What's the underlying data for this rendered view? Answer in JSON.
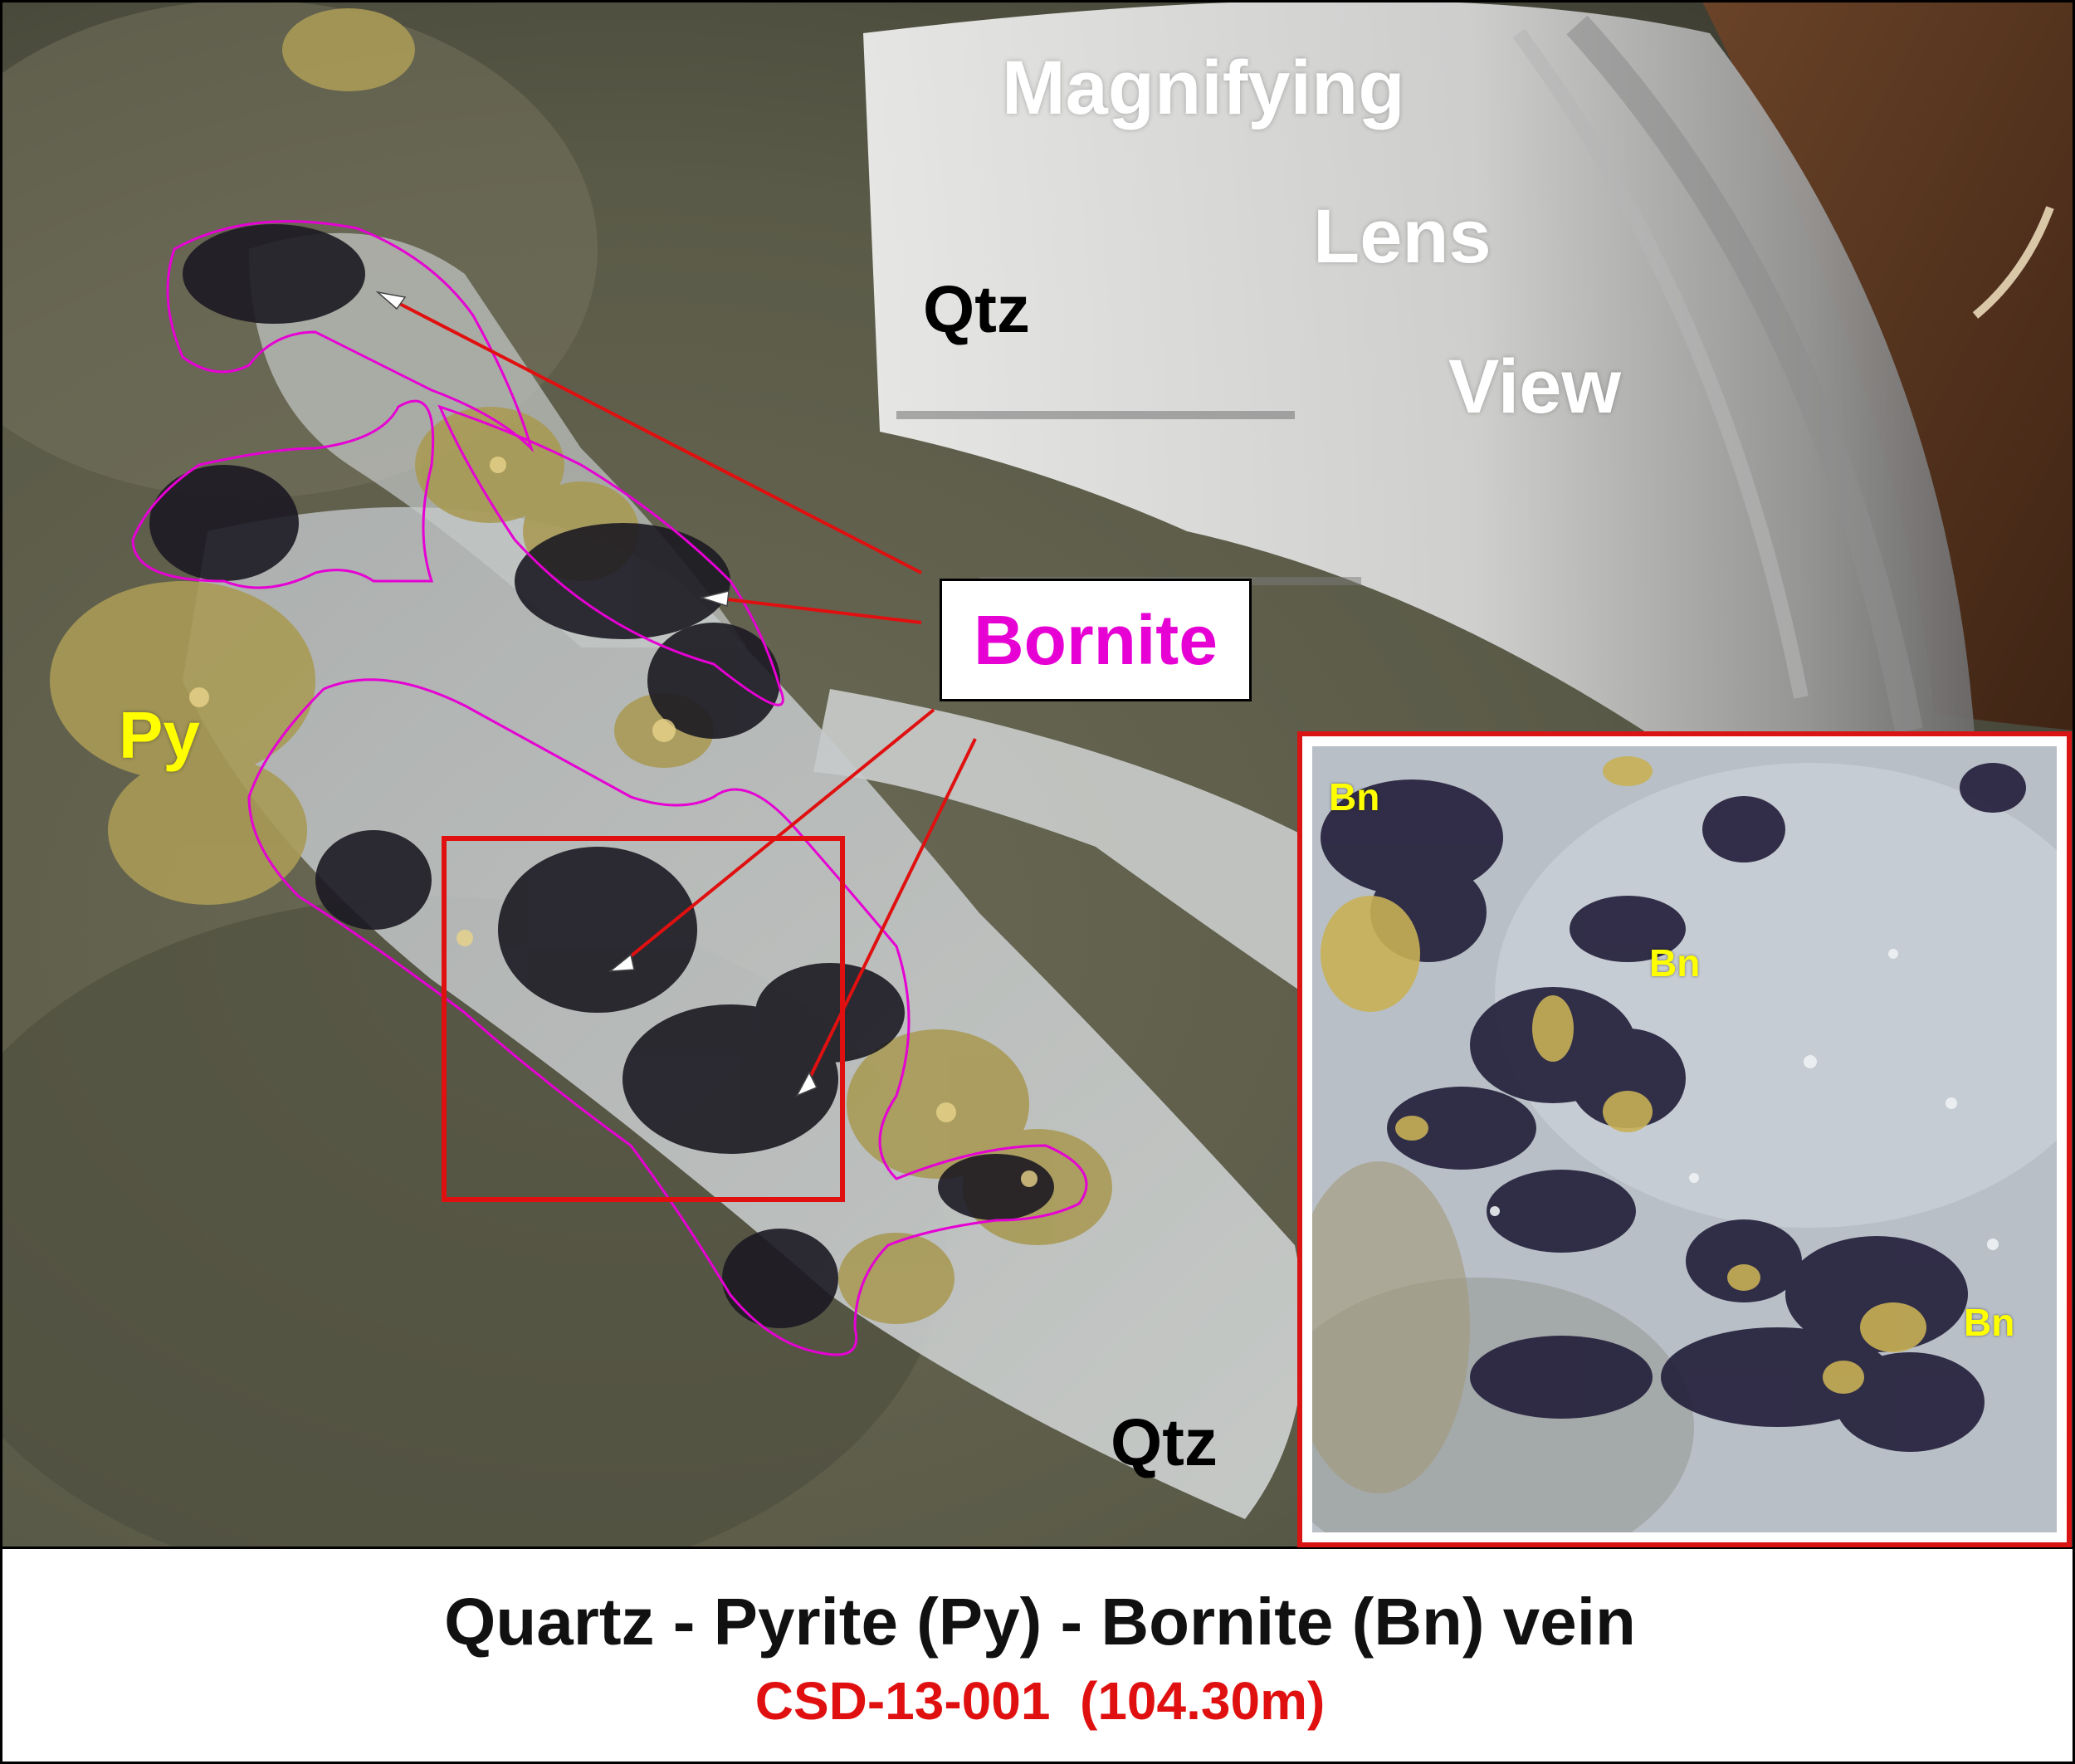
{
  "lens_labels": {
    "line1": "Magnifying",
    "line2": "Lens",
    "line3": "View"
  },
  "mineral_labels": {
    "qtz_top": "Qtz",
    "qtz_bottom": "Qtz",
    "py": "Py",
    "bornite": "Bornite"
  },
  "inset": {
    "bn_labels": [
      "Bn",
      "Bn",
      "Bn"
    ]
  },
  "caption": {
    "title": "Quartz - Pyrite (Py) - Bornite (Bn) vein",
    "subtitle": "CSD-13-001  (104.30m)"
  },
  "colors": {
    "bornite_label": "#e600d4",
    "annotation_red": "#d81414",
    "outline_magenta": "#e600d4",
    "pyrite_label": "#ffff00",
    "subtitle_red": "#e01010"
  }
}
